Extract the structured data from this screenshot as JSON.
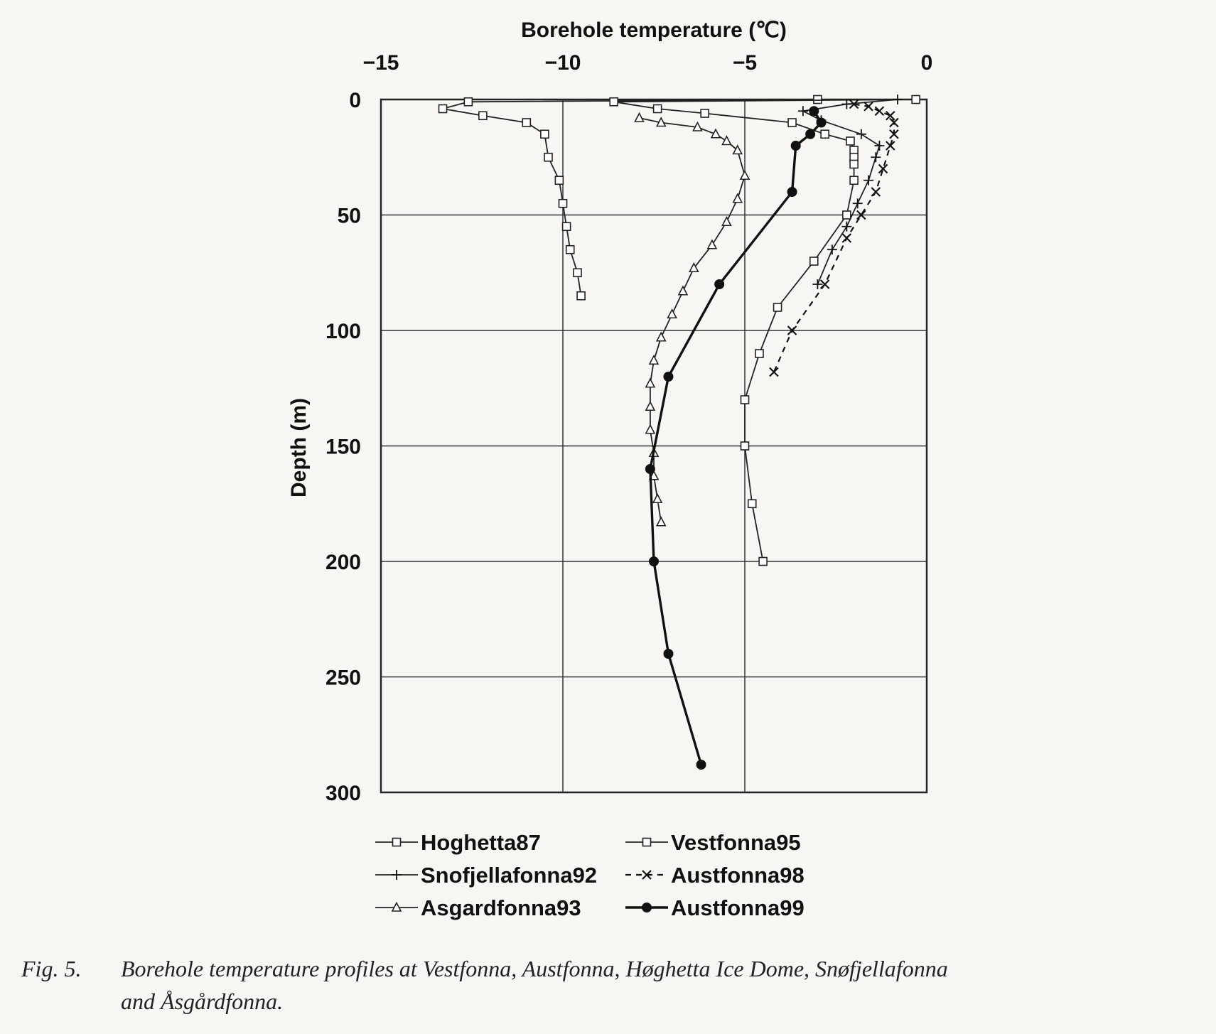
{
  "chart_data": {
    "type": "line",
    "title": "",
    "xlabel": "Borehole temperature (℃)",
    "ylabel": "Depth (m)",
    "xlim": [
      -15,
      0
    ],
    "ylim": [
      0,
      300
    ],
    "x_axis_position": "top",
    "y_axis_inverted": true,
    "xticks": [
      -15,
      -10,
      -5,
      0
    ],
    "yticks": [
      0,
      50,
      100,
      150,
      200,
      250,
      300
    ],
    "grid": true,
    "legend_position": "bottom",
    "series": [
      {
        "name": "Hoghetta87",
        "marker": "square",
        "line": "solid",
        "points": [
          [
            -3.0,
            0
          ],
          [
            -12.6,
            1
          ],
          [
            -13.3,
            4
          ],
          [
            -12.2,
            7
          ],
          [
            -11.0,
            10
          ],
          [
            -10.5,
            15
          ],
          [
            -10.4,
            25
          ],
          [
            -10.1,
            35
          ],
          [
            -10.0,
            45
          ],
          [
            -9.9,
            55
          ],
          [
            -9.8,
            65
          ],
          [
            -9.6,
            75
          ],
          [
            -9.5,
            85
          ]
        ]
      },
      {
        "name": "Vestfonna95",
        "marker": "square",
        "line": "solid",
        "points": [
          [
            -0.3,
            0
          ],
          [
            -8.6,
            1
          ],
          [
            -7.4,
            4
          ],
          [
            -6.1,
            6
          ],
          [
            -3.7,
            10
          ],
          [
            -2.8,
            15
          ],
          [
            -2.1,
            18
          ],
          [
            -2.0,
            22
          ],
          [
            -2.0,
            25
          ],
          [
            -2.0,
            28
          ],
          [
            -2.0,
            35
          ],
          [
            -2.2,
            50
          ],
          [
            -3.1,
            70
          ],
          [
            -4.1,
            90
          ],
          [
            -4.6,
            110
          ],
          [
            -5.0,
            130
          ],
          [
            -5.0,
            150
          ],
          [
            -4.8,
            175
          ],
          [
            -4.5,
            200
          ]
        ]
      },
      {
        "name": "Snofjellafonna92",
        "marker": "plus",
        "line": "solid",
        "points": [
          [
            -0.8,
            0
          ],
          [
            -2.2,
            2
          ],
          [
            -3.4,
            5
          ],
          [
            -2.9,
            9
          ],
          [
            -1.8,
            15
          ],
          [
            -1.3,
            20
          ],
          [
            -1.4,
            25
          ],
          [
            -1.6,
            35
          ],
          [
            -1.9,
            45
          ],
          [
            -2.2,
            55
          ],
          [
            -2.6,
            65
          ],
          [
            -3.0,
            80
          ]
        ]
      },
      {
        "name": "Austfonna98",
        "marker": "x",
        "line": "dashed",
        "points": [
          [
            -2.0,
            2
          ],
          [
            -1.6,
            3
          ],
          [
            -1.3,
            5
          ],
          [
            -1.0,
            7
          ],
          [
            -0.9,
            10
          ],
          [
            -0.9,
            15
          ],
          [
            -1.0,
            20
          ],
          [
            -1.2,
            30
          ],
          [
            -1.4,
            40
          ],
          [
            -1.8,
            50
          ],
          [
            -2.2,
            60
          ],
          [
            -2.8,
            80
          ],
          [
            -3.7,
            100
          ],
          [
            -4.2,
            118
          ]
        ]
      },
      {
        "name": "Asgardfonna93",
        "marker": "triangle",
        "line": "solid",
        "points": [
          [
            -7.9,
            8
          ],
          [
            -7.3,
            10
          ],
          [
            -6.3,
            12
          ],
          [
            -5.8,
            15
          ],
          [
            -5.5,
            18
          ],
          [
            -5.2,
            22
          ],
          [
            -5.0,
            33
          ],
          [
            -5.2,
            43
          ],
          [
            -5.5,
            53
          ],
          [
            -5.9,
            63
          ],
          [
            -6.4,
            73
          ],
          [
            -6.7,
            83
          ],
          [
            -7.0,
            93
          ],
          [
            -7.3,
            103
          ],
          [
            -7.5,
            113
          ],
          [
            -7.6,
            123
          ],
          [
            -7.6,
            133
          ],
          [
            -7.6,
            143
          ],
          [
            -7.5,
            153
          ],
          [
            -7.5,
            163
          ],
          [
            -7.4,
            173
          ],
          [
            -7.3,
            183
          ]
        ]
      },
      {
        "name": "Austfonna99",
        "marker": "circle",
        "line": "solid-bold",
        "points": [
          [
            -3.1,
            5
          ],
          [
            -2.9,
            10
          ],
          [
            -3.2,
            15
          ],
          [
            -3.6,
            20
          ],
          [
            -3.7,
            40
          ],
          [
            -5.7,
            80
          ],
          [
            -7.1,
            120
          ],
          [
            -7.6,
            160
          ],
          [
            -7.5,
            200
          ],
          [
            -7.1,
            240
          ],
          [
            -6.2,
            288
          ]
        ]
      }
    ]
  },
  "legend": [
    "Hoghetta87",
    "Vestfonna95",
    "Snofjellafonna92",
    "Austfonna98",
    "Asgardfonna93",
    "Austfonna99"
  ],
  "caption": {
    "label": "Fig. 5.",
    "line1": "Borehole temperature profiles at Vestfonna, Austfonna, Høghetta Ice Dome, Snøfjellafonna",
    "line2": "and  Åsgårdfonna."
  }
}
